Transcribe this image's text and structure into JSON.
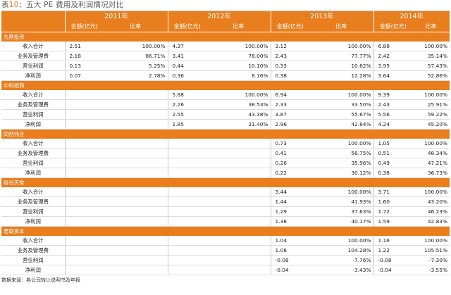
{
  "caption": {
    "prefix": "表",
    "number": "10",
    "title": "：五大 PE 费用及利润情况对比"
  },
  "header": {
    "years": [
      "2011年",
      "2012年",
      "2013年",
      "2014年"
    ],
    "amount_label": "金额(亿元)",
    "ratio_label": "比率"
  },
  "sections": [
    {
      "name": "九鼎投资",
      "rows": [
        {
          "label": "收入合计",
          "cells": [
            "2.51",
            "100.00%",
            "4.37",
            "100.00%",
            "3.12",
            "100.00%",
            "6.88",
            "100.00%"
          ]
        },
        {
          "label": "业务及管理费",
          "cells": [
            "2.18",
            "86.71%",
            "3.41",
            "78.00%",
            "2.43",
            "77.77%",
            "2.42",
            "35.14%"
          ]
        },
        {
          "label": "营业利润",
          "cells": [
            "0.13",
            "5.25%",
            "0.44",
            "10.10%",
            "0.33",
            "10.62%",
            "3.95",
            "57.43%"
          ]
        },
        {
          "label": "净利润",
          "cells": [
            "0.07",
            "2.78%",
            "0.36",
            "8.16%",
            "0.38",
            "12.28%",
            "3.64",
            "52.86%"
          ]
        }
      ]
    },
    {
      "name": "中科招商",
      "rows": [
        {
          "label": "收入合计",
          "cells": [
            "",
            "",
            "5.88",
            "100.00%",
            "6.94",
            "100.00%",
            "9.39",
            "100.00%"
          ]
        },
        {
          "label": "业务及管理费",
          "cells": [
            "",
            "",
            "2.26",
            "38.53%",
            "2.33",
            "33.50%",
            "2.43",
            "25.91%"
          ]
        },
        {
          "label": "营业利润",
          "cells": [
            "",
            "",
            "2.55",
            "43.38%",
            "3.87",
            "55.67%",
            "5.56",
            "59.22%"
          ]
        },
        {
          "label": "净利润",
          "cells": [
            "",
            "",
            "1.85",
            "31.40%",
            "2.96",
            "42.64%",
            "4.24",
            "45.20%"
          ]
        }
      ]
    },
    {
      "name": "同创伟业",
      "rows": [
        {
          "label": "收入合计",
          "cells": [
            "",
            "",
            "",
            "",
            "0.73",
            "100.00%",
            "1.05",
            "100.00%"
          ]
        },
        {
          "label": "业务及管理费",
          "cells": [
            "",
            "",
            "",
            "",
            "0.41",
            "56.75%",
            "0.51",
            "48.34%"
          ]
        },
        {
          "label": "营业利润",
          "cells": [
            "",
            "",
            "",
            "",
            "0.26",
            "35.96%",
            "0.49",
            "47.21%"
          ]
        },
        {
          "label": "净利润",
          "cells": [
            "",
            "",
            "",
            "",
            "0.22",
            "30.12%",
            "0.38",
            "36.73%"
          ]
        }
      ]
    },
    {
      "name": "硅谷天堂",
      "rows": [
        {
          "label": "收入合计",
          "cells": [
            "",
            "",
            "",
            "",
            "3.44",
            "100.00%",
            "3.71",
            "100.00%"
          ]
        },
        {
          "label": "业务及管理费",
          "cells": [
            "",
            "",
            "",
            "",
            "1.44",
            "41.93%",
            "1.60",
            "43.20%"
          ]
        },
        {
          "label": "营业利润",
          "cells": [
            "",
            "",
            "",
            "",
            "1.29",
            "37.63%",
            "1.72",
            "46.23%"
          ]
        },
        {
          "label": "净利润",
          "cells": [
            "",
            "",
            "",
            "",
            "1.38",
            "40.17%",
            "1.59",
            "42.83%"
          ]
        }
      ]
    },
    {
      "name": "君联资本",
      "rows": [
        {
          "label": "收入合计",
          "cells": [
            "",
            "",
            "",
            "",
            "1.04",
            "100.00%",
            "1.16",
            "100.00%"
          ]
        },
        {
          "label": "业务及管理费",
          "cells": [
            "",
            "",
            "",
            "",
            "1.08",
            "104.28%",
            "1.22",
            "105.51%"
          ]
        },
        {
          "label": "营业利润",
          "cells": [
            "",
            "",
            "",
            "",
            "-0.08",
            "-7.76%",
            "-0.08",
            "-7.30%"
          ]
        },
        {
          "label": "净利润",
          "cells": [
            "",
            "",
            "",
            "",
            "-0.04",
            "-3.43%",
            "-0.04",
            "-3.55%"
          ]
        }
      ]
    }
  ],
  "source": "数据来源：各公司转让说明书及年报",
  "colors": {
    "accent": "#e87e1e",
    "grid": "#dcdcdc"
  }
}
